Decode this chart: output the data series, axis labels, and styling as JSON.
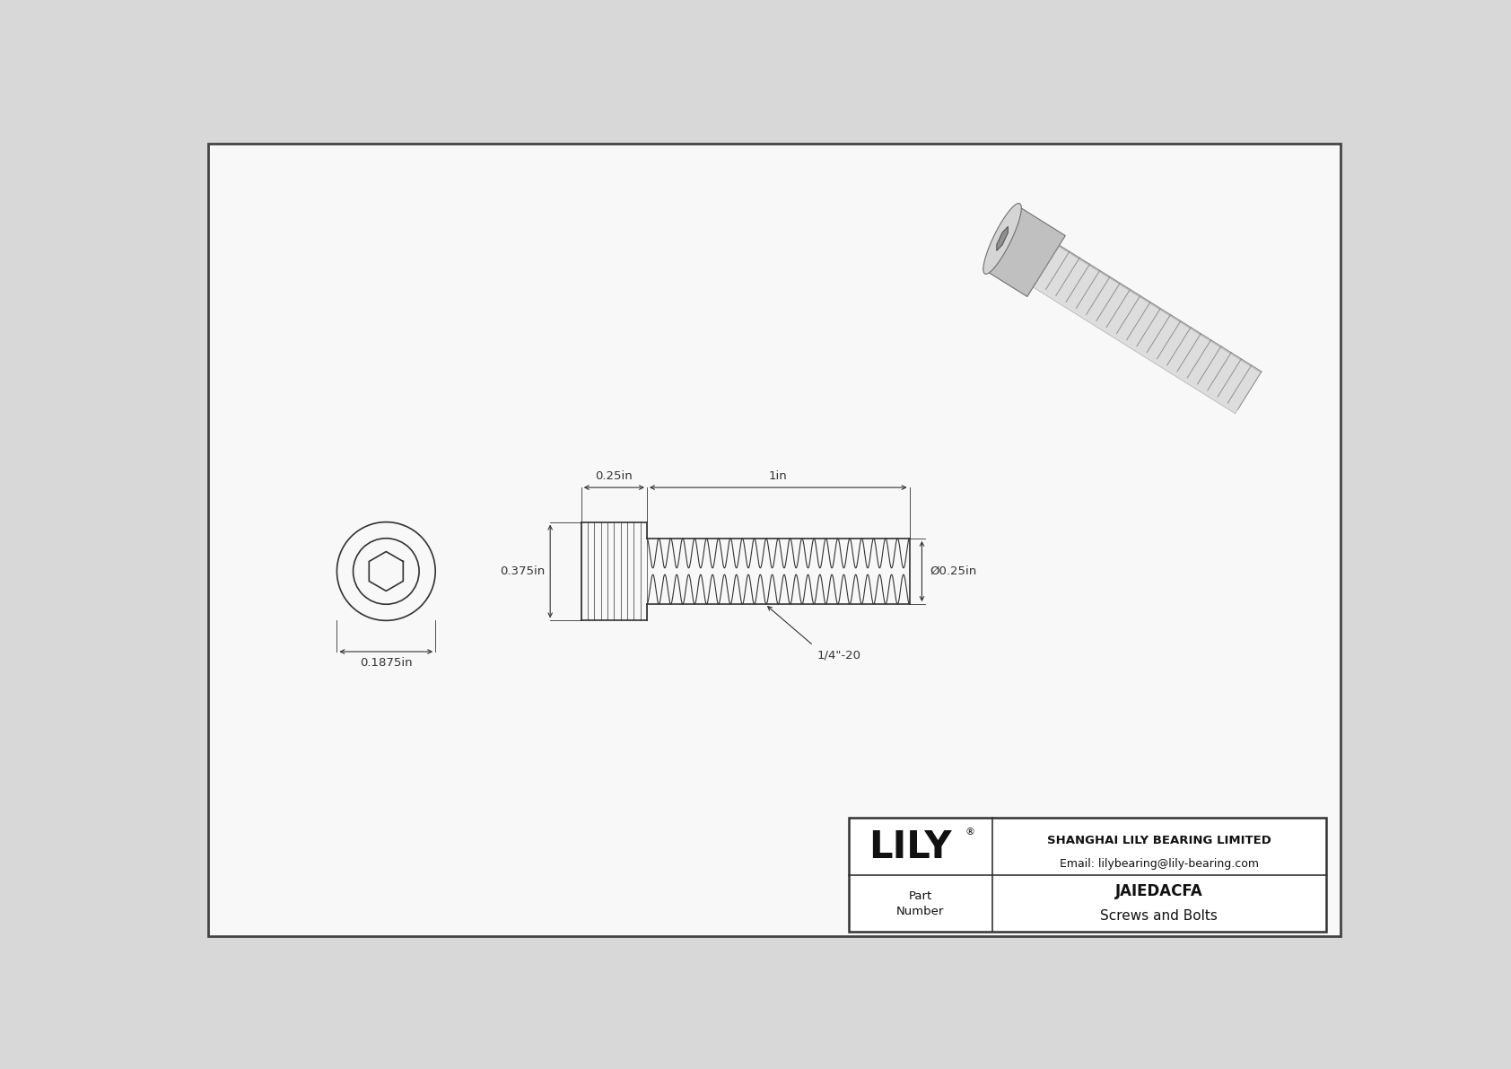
{
  "bg_color": "#d8d8d8",
  "drawing_bg": "#f2f2f2",
  "border_color": "#555555",
  "line_color": "#333333",
  "title": "JAIEDACFA",
  "subtitle": "Screws and Bolts",
  "company": "SHANGHAI LILY BEARING LIMITED",
  "email": "Email: lilybearing@lily-bearing.com",
  "logo": "LILY",
  "part_label": "Part\nNumber",
  "dim_head_length": "0.25in",
  "dim_shank_length": "1in",
  "dim_head_height": "0.375in",
  "dim_diameter": "Ø0.25in",
  "dim_thread": "1/4\"-20",
  "dim_od": "0.1875in",
  "font_size_dims": 9.5,
  "font_size_logo": 30,
  "font_size_company": 9.5,
  "font_size_part": 12
}
